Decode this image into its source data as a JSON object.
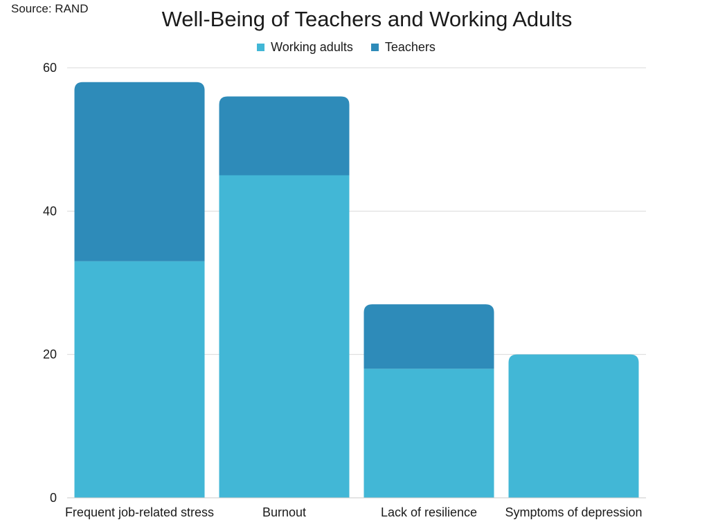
{
  "source": "Source: RAND",
  "colors": {
    "working_adults": "#42b7d6",
    "teachers": "#2e8bb9",
    "grid": "#d9d9d9"
  },
  "chart_data": {
    "type": "bar",
    "stacked": true,
    "title": "Well-Being of Teachers and Working Adults",
    "xlabel": "",
    "ylabel": "",
    "categories": [
      "Frequent job-related stress",
      "Burnout",
      "Lack of resilience",
      "Symptoms of depression"
    ],
    "series": [
      {
        "name": "Working adults",
        "values": [
          33,
          45,
          18,
          20
        ]
      },
      {
        "name": "Teachers",
        "values": [
          25,
          11,
          9,
          0
        ]
      }
    ],
    "ylim": [
      0,
      60
    ],
    "yticks": [
      0,
      20,
      40,
      60
    ],
    "grid": true,
    "legend": "top-center"
  }
}
